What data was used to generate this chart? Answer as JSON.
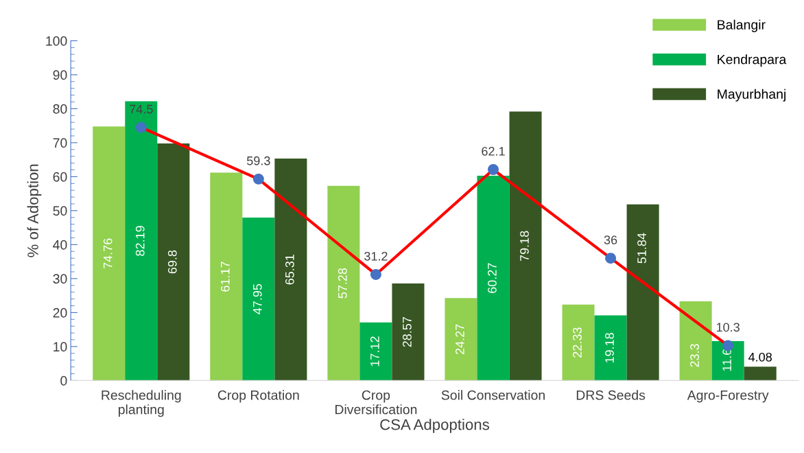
{
  "chart_data": {
    "type": "bar",
    "xlabel": "CSA Adpoptions",
    "ylabel": "% of Adoption",
    "categories": [
      "Rescheduling\nplanting",
      "Crop Rotation",
      "Crop\nDiversification",
      "Soil Conservation",
      "DRS Seeds",
      "Agro-Forestry"
    ],
    "series": [
      {
        "name": "Balangir",
        "color": "#92d050",
        "values": [
          74.76,
          61.17,
          57.28,
          24.27,
          22.33,
          23.3
        ]
      },
      {
        "name": "Kendrapara",
        "color": "#00b050",
        "values": [
          82.19,
          47.95,
          17.12,
          60.27,
          19.18,
          11.6
        ]
      },
      {
        "name": "Mayurbhanj",
        "color": "#375623",
        "values": [
          69.8,
          65.31,
          28.57,
          79.18,
          51.84,
          4.08
        ]
      },
      {
        "type": "line",
        "color": "#ff0000",
        "colors": [
          "#4472c4",
          "#4472c4",
          "#4472c4",
          "#4472c4",
          "#4472c4",
          "#4472c4"
        ],
        "marker": "circle",
        "values": [
          74.5,
          59.3,
          31.2,
          62.1,
          36,
          10.3
        ]
      }
    ],
    "ylim": [
      0,
      100
    ],
    "yticks": [
      0,
      10,
      20,
      30,
      40,
      50,
      60,
      70,
      80,
      90,
      100
    ],
    "grid": false,
    "legend": "top right",
    "data_labels": true
  }
}
